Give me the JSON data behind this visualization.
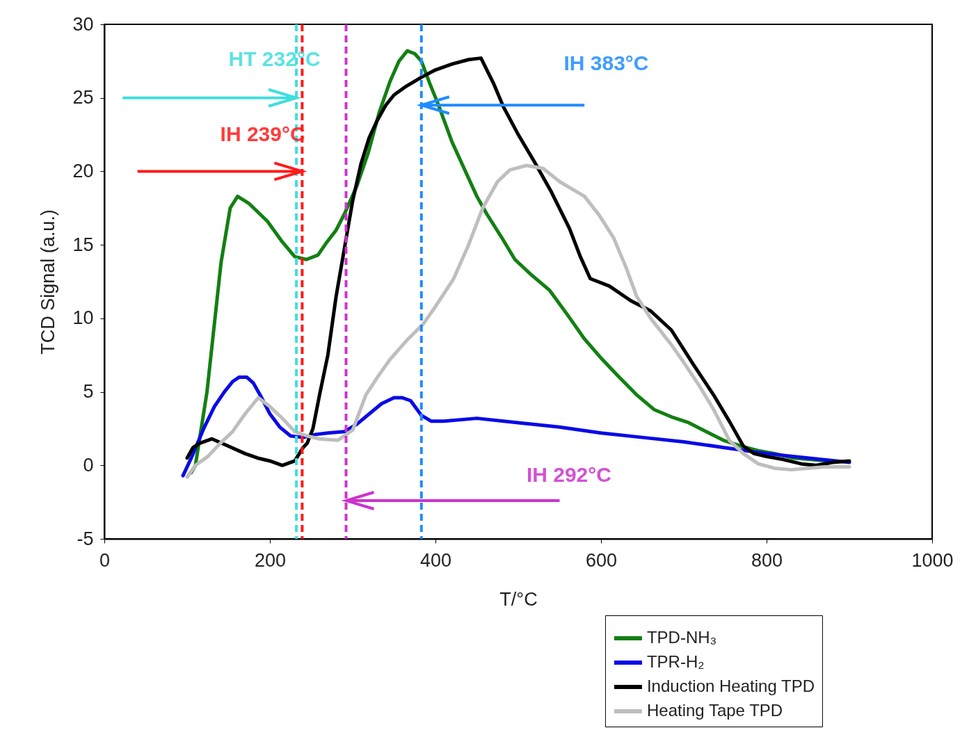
{
  "chart_data": {
    "type": "line",
    "xlabel": "T/°C",
    "ylabel": "TCD Signal (a.u.)",
    "xlim": [
      0,
      1000
    ],
    "xticks": [
      0,
      200,
      400,
      600,
      800,
      1000
    ],
    "ylim": [
      -5,
      30
    ],
    "yticks": [
      -5,
      0,
      5,
      10,
      15,
      20,
      25,
      30
    ],
    "grid": false,
    "legend": "bottom right",
    "line_style": "solid",
    "marker": "none",
    "series": [
      {
        "name": "TPD-NH₃",
        "color": "#128012",
        "x": [
          105,
          110,
          124,
          141,
          152,
          161,
          175,
          197,
          215,
          230,
          244,
          258,
          269,
          280,
          290,
          305,
          319,
          332,
          345,
          356,
          366,
          375,
          383,
          393,
          403,
          420,
          437,
          450,
          462,
          480,
          496,
          515,
          538,
          560,
          580,
          600,
          622,
          643,
          664,
          685,
          706,
          727,
          748,
          770,
          790,
          810,
          832,
          853,
          874
        ],
        "values": [
          -0.5,
          0,
          5.0,
          13.8,
          17.5,
          18.3,
          17.8,
          16.6,
          15.2,
          14.2,
          14.0,
          14.3,
          15.2,
          16.0,
          17.1,
          19.0,
          21.3,
          24.0,
          26.1,
          27.5,
          28.2,
          28.0,
          27.5,
          26.0,
          24.6,
          22.0,
          19.9,
          18.3,
          17.1,
          15.5,
          14.0,
          13.0,
          11.9,
          10.2,
          8.6,
          7.3,
          6.0,
          4.8,
          3.8,
          3.3,
          2.9,
          2.3,
          1.7,
          1.3,
          1.0,
          0.8,
          0.5,
          0.4,
          0.3
        ]
      },
      {
        "name": "TPR-H₂",
        "color": "#0a0ae6",
        "x": [
          95,
          105,
          120,
          133,
          145,
          155,
          163,
          172,
          180,
          190,
          200,
          212,
          225,
          240,
          255,
          270,
          290,
          305,
          320,
          335,
          350,
          360,
          370,
          383,
          395,
          410,
          450,
          500,
          550,
          600,
          650,
          700,
          750,
          800,
          850,
          900
        ],
        "values": [
          -0.7,
          0.5,
          2.5,
          4.0,
          5.0,
          5.7,
          6.0,
          6.0,
          5.6,
          4.6,
          3.5,
          2.6,
          2.0,
          1.9,
          2.1,
          2.2,
          2.3,
          2.8,
          3.5,
          4.2,
          4.6,
          4.6,
          4.4,
          3.4,
          3.0,
          3.0,
          3.2,
          2.9,
          2.6,
          2.2,
          1.9,
          1.6,
          1.2,
          0.8,
          0.5,
          0.2
        ]
      },
      {
        "name": "Induction Heating TPD",
        "color": "#000000",
        "x": [
          100,
          107,
          115,
          130,
          150,
          170,
          185,
          200,
          215,
          230,
          240,
          245,
          252,
          260,
          270,
          280,
          292,
          300,
          310,
          320,
          330,
          340,
          350,
          365,
          383,
          400,
          420,
          440,
          455,
          470,
          482,
          500,
          520,
          540,
          562,
          575,
          587,
          610,
          636,
          660,
          685,
          710,
          737,
          755,
          772,
          785,
          800,
          820,
          842,
          860,
          880,
          900
        ],
        "values": [
          0.5,
          1.2,
          1.5,
          1.8,
          1.3,
          0.8,
          0.5,
          0.3,
          0,
          0.3,
          1.2,
          1.5,
          2.5,
          4.8,
          7.5,
          11.5,
          15.4,
          18.0,
          20.5,
          22.3,
          23.5,
          24.5,
          25.2,
          25.8,
          26.4,
          26.9,
          27.3,
          27.6,
          27.7,
          26.0,
          24.4,
          22.5,
          20.6,
          18.6,
          16.1,
          14.2,
          12.7,
          12.2,
          11.2,
          10.5,
          9.2,
          7.0,
          4.7,
          3.0,
          1.3,
          0.8,
          0.6,
          0.4,
          0.1,
          0.0,
          0.2,
          0.3
        ]
      },
      {
        "name": "Heating Tape TPD",
        "color": "#bebebe",
        "x": [
          100,
          110,
          125,
          140,
          155,
          170,
          186,
          200,
          215,
          230,
          245,
          260,
          282,
          300,
          316,
          330,
          345,
          367,
          385,
          400,
          422,
          440,
          457,
          475,
          490,
          510,
          530,
          550,
          565,
          580,
          598,
          615,
          630,
          643,
          660,
          685,
          700,
          720,
          737,
          755,
          772,
          790,
          810,
          830,
          850,
          870,
          900
        ],
        "values": [
          -0.8,
          0,
          0.6,
          1.5,
          2.3,
          3.5,
          4.6,
          4.0,
          3.2,
          2.3,
          2.0,
          1.8,
          1.7,
          2.4,
          4.8,
          6.0,
          7.2,
          8.6,
          9.6,
          10.8,
          12.7,
          15.0,
          17.5,
          19.3,
          20.1,
          20.4,
          20.2,
          19.3,
          18.8,
          18.3,
          17.0,
          15.5,
          13.5,
          11.5,
          10.0,
          8.2,
          7.0,
          5.3,
          3.7,
          1.7,
          0.8,
          0.1,
          -0.2,
          -0.3,
          -0.2,
          -0.1,
          -0.1
        ]
      }
    ],
    "ref_lines": [
      {
        "axis": "x",
        "value": 232,
        "label": "HT 232°C",
        "color": "#40dede",
        "line_style": "dashed"
      },
      {
        "axis": "x",
        "value": 239,
        "label": "IH 239°C",
        "color": "#ff1a1a",
        "line_style": "dashed"
      },
      {
        "axis": "x",
        "value": 292,
        "label": "IH 292°C",
        "color": "#cc33cc",
        "line_style": "dashed"
      },
      {
        "axis": "x",
        "value": 383,
        "label": "IH 383°C",
        "color": "#1e8cff",
        "line_style": "dashed"
      }
    ]
  }
}
